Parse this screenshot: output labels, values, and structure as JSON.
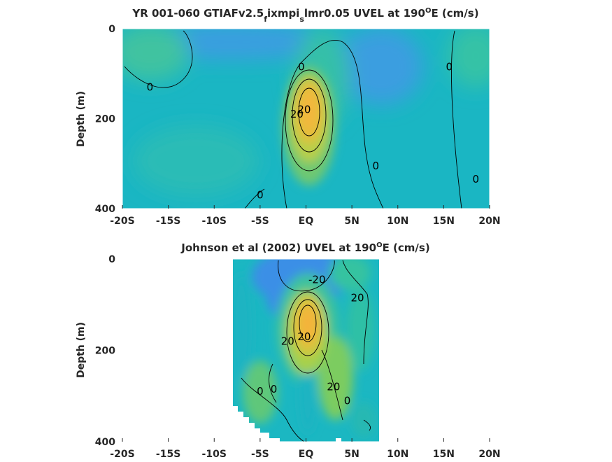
{
  "chart_data": [
    {
      "type": "heatmap",
      "title": "YR 001-060 GTIAFv2.5_fixmpi_slmr0.05 UVEL at 190°E (cm/s)",
      "title_main": "YR 001-060 GTIAFv2.5",
      "title_sub1": "f",
      "title_mid": "ixmpi",
      "title_sub2": "s",
      "title_tail": "lmr0.05 UVEL at 190",
      "title_sup": "O",
      "title_end": "E (cm/s)",
      "xlabel": "",
      "ylabel": "Depth (m)",
      "xlim": [
        -20,
        20
      ],
      "ylim": [
        0,
        400
      ],
      "x_ticks": [
        -20,
        -15,
        -10,
        -5,
        0,
        5,
        10,
        15,
        20
      ],
      "x_tick_labels": [
        "-20S",
        "-15S",
        "-10S",
        "-5S",
        "EQ",
        "5N",
        "10N",
        "15N",
        "20N"
      ],
      "y_ticks": [
        0,
        200,
        400
      ],
      "y_tick_labels": [
        "0",
        "200",
        "400"
      ],
      "contour_labels": [
        {
          "text": "0",
          "lat": -17,
          "depth": 130
        },
        {
          "text": "0",
          "lat": -0.5,
          "depth": 85
        },
        {
          "text": "20",
          "lat": -1.0,
          "depth": 190
        },
        {
          "text": "20",
          "lat": -0.2,
          "depth": 180
        },
        {
          "text": "0",
          "lat": 7.6,
          "depth": 305
        },
        {
          "text": "0",
          "lat": 15.6,
          "depth": 85
        },
        {
          "text": "0",
          "lat": 18.5,
          "depth": 335
        },
        {
          "text": "0",
          "lat": -5.0,
          "depth": 370
        }
      ]
    },
    {
      "type": "heatmap",
      "title": "Johnson et al (2002) UVEL at 190°E (cm/s)",
      "title_main": "Johnson et al (2002) UVEL at 190",
      "title_sup": "O",
      "title_end": "E (cm/s)",
      "xlabel": "",
      "ylabel": "Depth (m)",
      "xlim": [
        -20,
        20
      ],
      "ylim": [
        0,
        400
      ],
      "data_lat_range": [
        -8,
        8
      ],
      "x_ticks": [
        -20,
        -15,
        -10,
        -5,
        0,
        5,
        10,
        15,
        20
      ],
      "x_tick_labels": [
        "-20S",
        "-15S",
        "-10S",
        "-5S",
        "EQ",
        "5N",
        "10N",
        "15N",
        "20N"
      ],
      "y_ticks": [
        0,
        200,
        400
      ],
      "y_tick_labels": [
        "0",
        "200",
        "400"
      ],
      "contour_labels": [
        {
          "text": "-20",
          "lat": 1.2,
          "depth": 45
        },
        {
          "text": "20",
          "lat": 5.6,
          "depth": 85
        },
        {
          "text": "20",
          "lat": -2.0,
          "depth": 180
        },
        {
          "text": "20",
          "lat": -0.2,
          "depth": 170
        },
        {
          "text": "20",
          "lat": 3.0,
          "depth": 280
        },
        {
          "text": "0",
          "lat": -5.0,
          "depth": 290
        },
        {
          "text": "0",
          "lat": -3.5,
          "depth": 285
        },
        {
          "text": "0",
          "lat": 4.5,
          "depth": 310
        }
      ]
    }
  ]
}
